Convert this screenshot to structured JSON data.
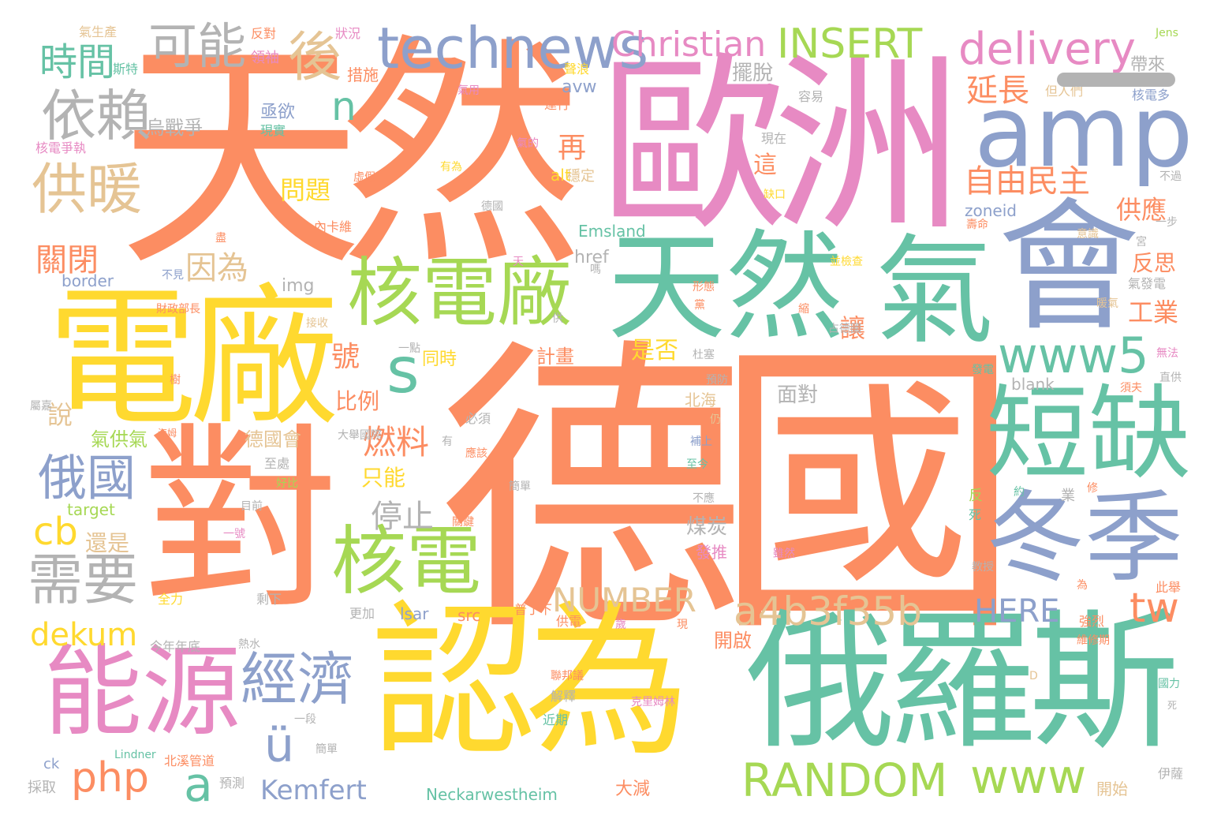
{
  "palette": {
    "orange": "#fc8d62",
    "yellow": "#ffd92f",
    "teal": "#66c2a5",
    "blue": "#8da0cb",
    "pink": "#e78ac3",
    "green": "#a6d854",
    "tan": "#e5c494",
    "gray": "#b3b3b3"
  },
  "words": [
    "德國",
    "天然",
    "歐洲",
    "電廠",
    "對",
    "認為",
    "俄羅斯",
    "天然",
    "氣",
    "會",
    "短缺",
    "冬季",
    "能源",
    "核電廠",
    "核電",
    "amp",
    "technews",
    "供暖",
    "依賴",
    "可能",
    "後",
    "時間",
    "需要",
    "俄國",
    "經濟",
    "s",
    "www5",
    "a4b3f35b",
    "NUMBER",
    "RANDOM",
    "HERE",
    "www",
    "php",
    "cb",
    "dekum",
    "Kemfert",
    "Christian",
    "INSERT",
    "delivery",
    "n",
    "ü",
    "a",
    "tw",
    "延長",
    "自由民主",
    "供應",
    "關閉",
    "因為",
    "再",
    "這",
    "問題",
    "停止",
    "燃料",
    "讓",
    "工業",
    "號",
    "說",
    "只能",
    "是否",
    "煤炭",
    "還是",
    "比例",
    "氣供氣",
    "德國會",
    "面對",
    "反思",
    "北海",
    "開啟",
    "發推",
    "同時",
    "計畫",
    "烏戰爭",
    "亟欲",
    "擺脫",
    "帶來",
    "措施",
    "領袖",
    "狀況",
    "反對",
    "氣生產",
    "斯特",
    "核電爭執",
    "現實",
    "但人們",
    "核電多",
    "Jens",
    "容易",
    "穩定",
    "現在",
    "運行",
    "聲浪",
    "氣用",
    "avw",
    "alt",
    "zoneid",
    "Emsland",
    "href",
    "img",
    "border",
    "target",
    "src",
    "lsar",
    "Neckarwestheim",
    "Lindner",
    "blank",
    "ck",
    "內卡維",
    "大減",
    "預測",
    "採取",
    "開始",
    "伊薩",
    "剩下",
    "熱水",
    "好比",
    "一段",
    "近期",
    "解釋",
    "供電",
    "全力",
    "今年年底",
    "北溪管道",
    "更加",
    "普丁下",
    "強烈",
    "維修期",
    "此舉",
    "直供",
    "無法",
    "國力",
    "D",
    "克里姆林",
    "聯邦議",
    "發電",
    "須夫",
    "反",
    "死",
    "黨",
    "氣發電",
    "財政部長",
    "接收",
    "一點",
    "必須",
    "仍",
    "補上",
    "至今",
    "不應",
    "雖然",
    "教授",
    "為",
    "一步",
    "宮",
    "意識",
    "壽命",
    "並檢查",
    "缺口",
    "虛假",
    "不過",
    "縮",
    "占德國",
    "暖氣",
    "德國",
    "氣的",
    "有為",
    "盡",
    "不見",
    "天",
    "嗎",
    "形態",
    "業",
    "供",
    "至處",
    "海姆",
    "大舉國際",
    "約",
    "屬嘉",
    "修",
    "關鍵",
    "簡單",
    "死",
    "應該",
    "簡單",
    "現",
    "預防",
    "杜塞",
    "一號",
    "樹",
    "目前",
    "歲",
    "有",
    "所會"
  ],
  "scrollbar_color": "#b3b3b3"
}
